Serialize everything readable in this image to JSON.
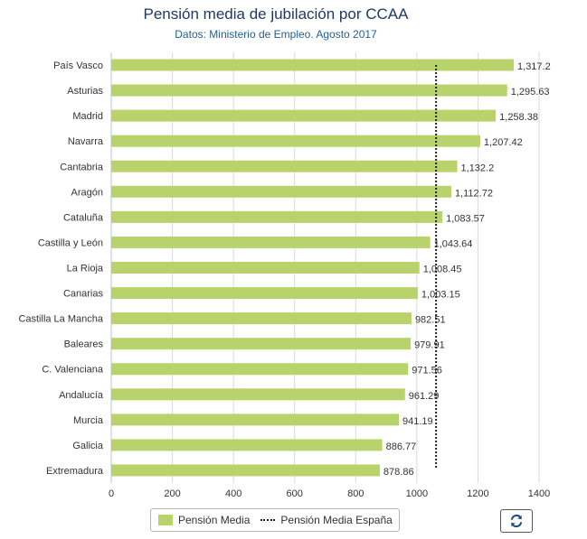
{
  "chart_data": {
    "type": "bar",
    "title": "Pensión media de jubilación por CCAA",
    "subtitle": "Datos: Ministerio de Empleo. Agosto 2017",
    "categories": [
      "País Vasco",
      "Asturias",
      "Madrid",
      "Navarra",
      "Cantabria",
      "Aragón",
      "Cataluña",
      "Castilla y León",
      "La Rioja",
      "Canarias",
      "Castilla La Mancha",
      "Baleares",
      "C. Valenciana",
      "Andalucía",
      "Murcia",
      "Galicia",
      "Extremadura"
    ],
    "series": [
      {
        "name": "Pensión Media",
        "color": "#b8d36b",
        "values": [
          1317.2,
          1295.63,
          1258.38,
          1207.42,
          1132.2,
          1112.72,
          1083.57,
          1043.64,
          1008.45,
          1003.15,
          982.51,
          979.91,
          971.56,
          961.29,
          941.19,
          886.77,
          878.86
        ],
        "labels": [
          "1,317.2",
          "1,295.63",
          "1,258.38",
          "1,207.42",
          "1,132.2",
          "1,112.72",
          "1,083.57",
          "1,043.64",
          "1,008.45",
          "1,003.15",
          "982.51",
          "979.91",
          "971.56",
          "961.29",
          "941.19",
          "886.77",
          "878.86"
        ]
      },
      {
        "name": "Pensión Media España",
        "type": "reference-line",
        "value": 1063,
        "color": "#222222"
      }
    ],
    "xlim": [
      0,
      1400
    ],
    "xticks": [
      "0",
      "200",
      "400",
      "600",
      "800",
      "1000",
      "1200",
      "1400"
    ],
    "grid": true,
    "legend": "bottom-center"
  },
  "legend": {
    "items": [
      "Pensión Media",
      "Pensión Media España"
    ]
  },
  "refresh_button": {
    "icon": "refresh-icon"
  }
}
